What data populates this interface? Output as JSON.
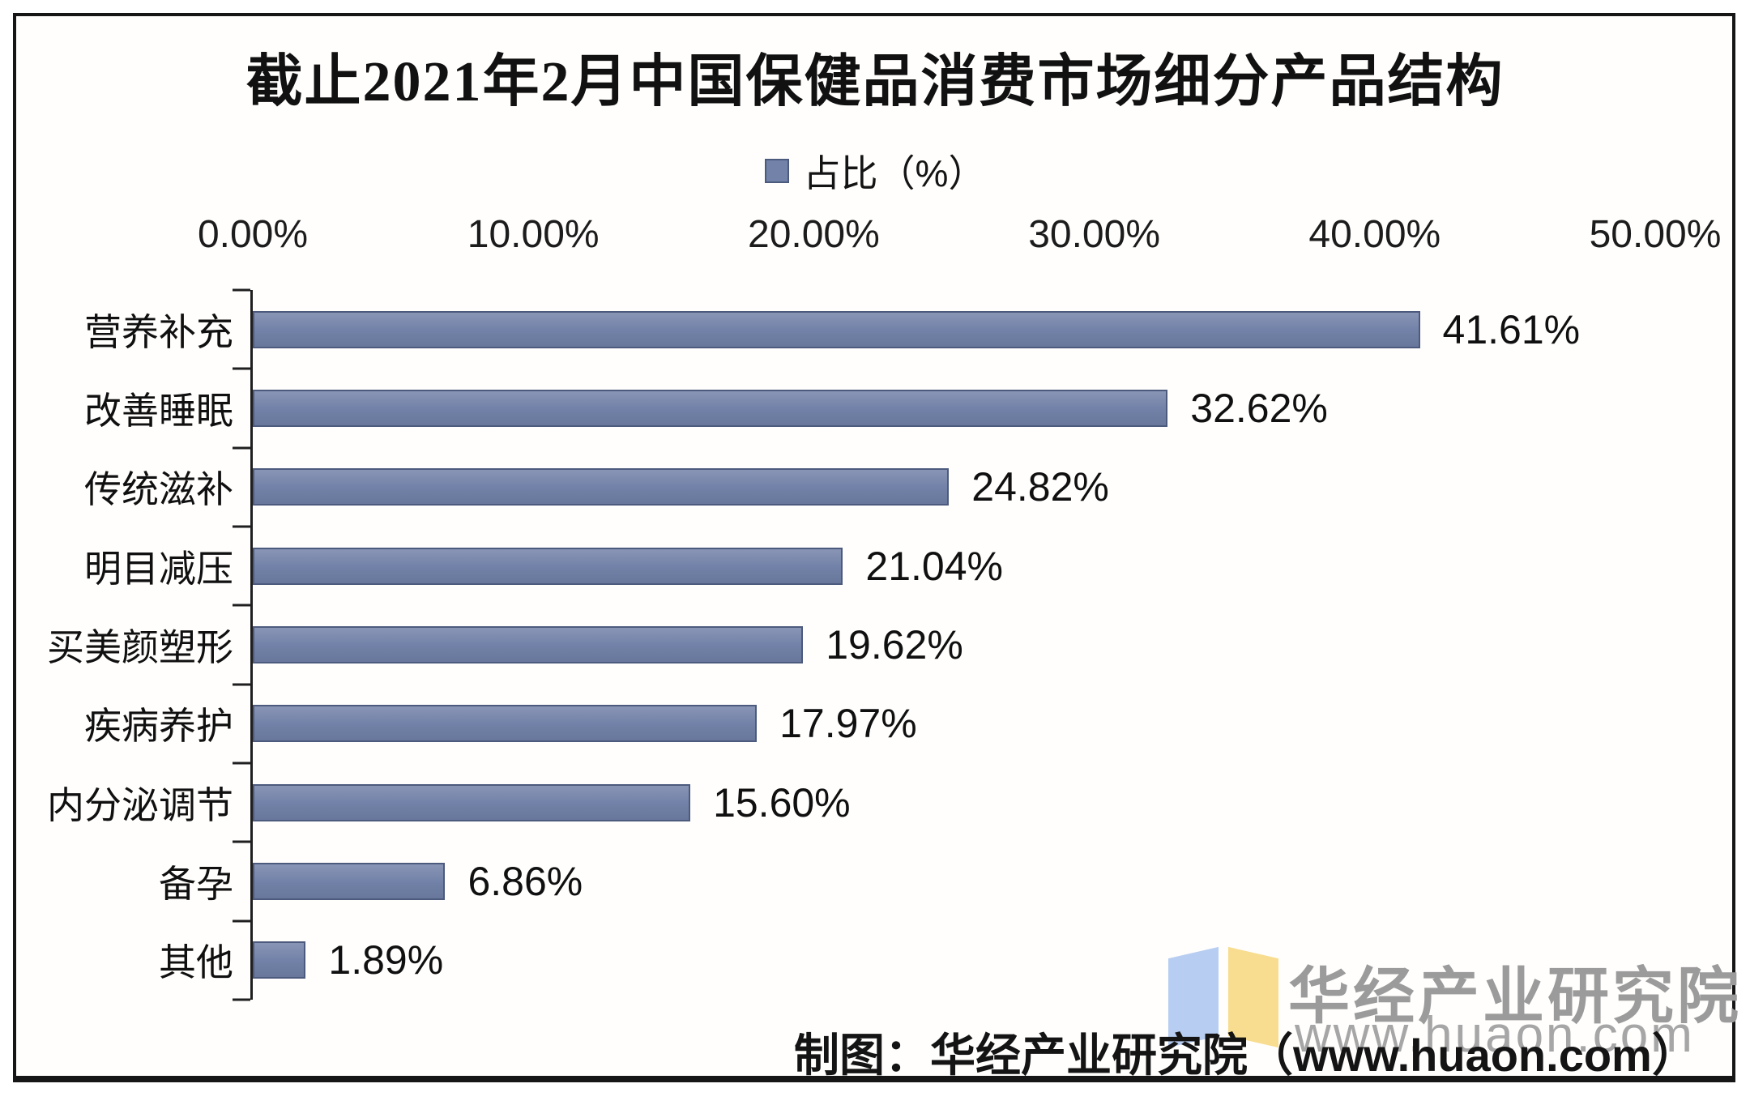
{
  "chart_data": {
    "type": "bar",
    "orientation": "horizontal",
    "title": "截止2021年2月中国保健品消费市场细分产品结构",
    "legend": {
      "label": "占比（%）",
      "position": "top"
    },
    "categories": [
      "营养补充",
      "改善睡眠",
      "传统滋补",
      "明目减压",
      "买美颜塑形",
      "疾病养护",
      "内分泌调节",
      "备孕",
      "其他"
    ],
    "values": [
      41.61,
      32.62,
      24.82,
      21.04,
      19.62,
      17.97,
      15.6,
      6.86,
      1.89
    ],
    "value_labels": [
      "41.61%",
      "32.62%",
      "24.82%",
      "21.04%",
      "19.62%",
      "17.97%",
      "15.60%",
      "6.86%",
      "1.89%"
    ],
    "xlabel": "",
    "ylabel": "",
    "xlim": [
      0,
      50
    ],
    "xtick_values": [
      0,
      10,
      20,
      30,
      40,
      50
    ],
    "xtick_labels": [
      "0.00%",
      "10.00%",
      "20.00%",
      "30.00%",
      "40.00%",
      "50.00%"
    ],
    "grid": false,
    "bar_fill_color": "#7282a8",
    "bar_border_color": "#4c5a7d"
  },
  "footer": {
    "credit": "制图：华经产业研究院（www.huaon.com）"
  },
  "watermark": {
    "company": "华经产业研究院",
    "website": "www.huaon.com",
    "logo_left_color": "#b7cdf1",
    "logo_right_color": "#f8dd90"
  }
}
